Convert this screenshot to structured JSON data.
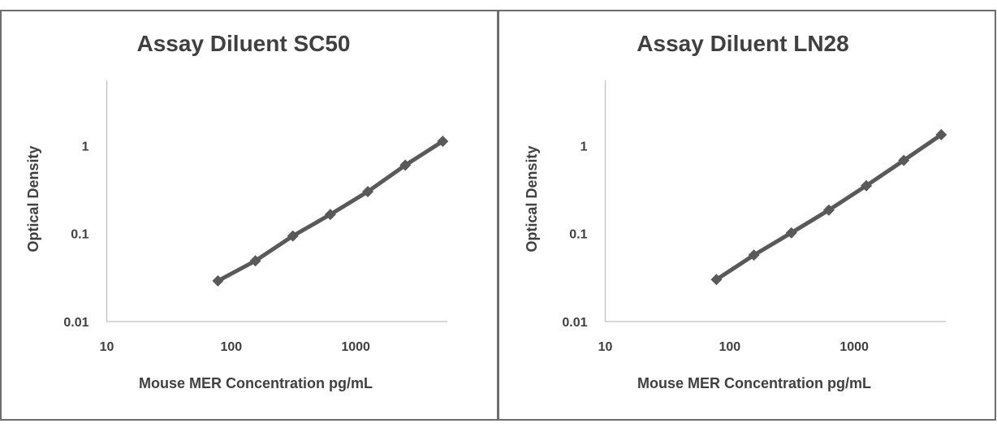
{
  "chart_data": [
    {
      "type": "line",
      "title": "Assay Diluent SC50",
      "xlabel": "Mouse MER  Concentration pg/mL",
      "ylabel": "Optical Density",
      "x_scale": "log",
      "y_scale": "log",
      "xlim": [
        10,
        10000
      ],
      "ylim": [
        0.01,
        10
      ],
      "x_ticks": [
        10,
        100,
        1000
      ],
      "x_tick_labels": [
        "10",
        "100",
        "1000"
      ],
      "y_ticks": [
        0.01,
        0.1,
        1
      ],
      "y_tick_labels": [
        "0.01",
        "0.1",
        "1"
      ],
      "grid": false,
      "legend": "none",
      "series": [
        {
          "x": [
            78.125,
            156.25,
            312.5,
            625,
            1250,
            2500,
            5000
          ],
          "y": [
            0.029,
            0.049,
            0.094,
            0.165,
            0.3,
            0.6,
            1.12
          ],
          "color": "#595959",
          "marker": "diamond"
        }
      ]
    },
    {
      "type": "line",
      "title": "Assay Diluent LN28",
      "xlabel": "Mouse MER  Concentration pg/mL",
      "ylabel": "Optical Density",
      "x_scale": "log",
      "y_scale": "log",
      "xlim": [
        10,
        10000
      ],
      "ylim": [
        0.01,
        10
      ],
      "x_ticks": [
        10,
        100,
        1000
      ],
      "x_tick_labels": [
        "10",
        "100",
        "1000"
      ],
      "y_ticks": [
        0.01,
        0.1,
        1
      ],
      "y_tick_labels": [
        "0.01",
        "0.1",
        "1"
      ],
      "grid": false,
      "legend": "none",
      "series": [
        {
          "x": [
            78.125,
            156.25,
            312.5,
            625,
            1250,
            2500,
            5000
          ],
          "y": [
            0.03,
            0.057,
            0.102,
            0.185,
            0.35,
            0.68,
            1.33
          ],
          "color": "#595959",
          "marker": "diamond"
        }
      ]
    }
  ]
}
